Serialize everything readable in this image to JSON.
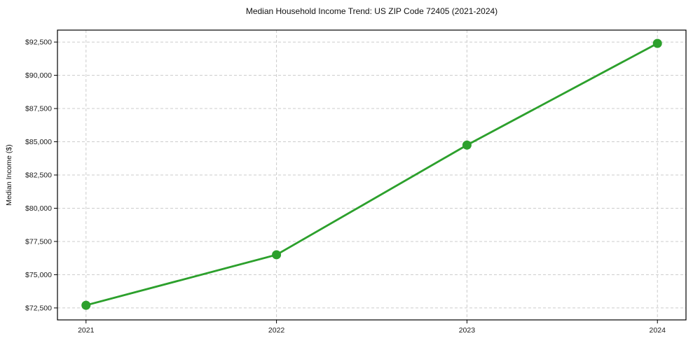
{
  "chart_data": {
    "type": "line",
    "title": "Median Household Income Trend: US ZIP Code 72405 (2021-2024)",
    "xlabel": "",
    "ylabel": "Median Income ($)",
    "categories": [
      "2021",
      "2022",
      "2023",
      "2024"
    ],
    "values": [
      72700,
      76500,
      84750,
      92400
    ],
    "series_name": "Median Household Income",
    "ylim": [
      71600,
      93400
    ],
    "y_ticks": [
      72500,
      75000,
      77500,
      80000,
      82500,
      85000,
      87500,
      90000,
      92500
    ],
    "y_tick_labels": [
      "$72,500",
      "$75,000",
      "$77,500",
      "$80,000",
      "$82,500",
      "$85,000",
      "$87,500",
      "$90,000",
      "$92,500"
    ],
    "grid": true,
    "grid_style": "dashed",
    "legend": "none",
    "line_color": "#2ca02c",
    "marker_color": "#2ca02c",
    "grid_color": "#cccccc",
    "axis_color": "#000000",
    "text_color": "#1a1a1a",
    "background_color": "#ffffff"
  }
}
